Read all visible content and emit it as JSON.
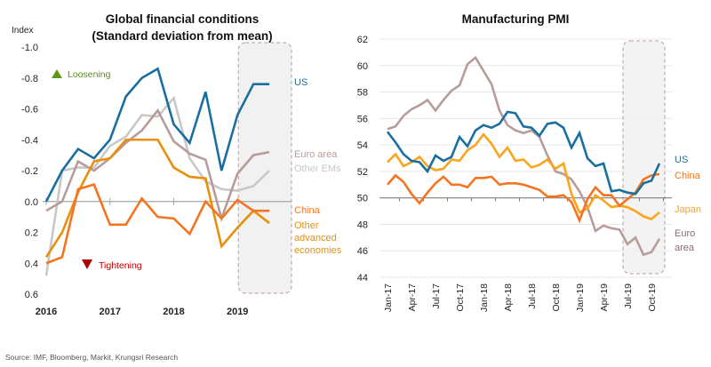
{
  "source": "Source: IMF, Bloomberg, Markit, Krungsri Research",
  "chart_data": [
    {
      "type": "line",
      "title": "Global financial conditions",
      "subtitle": "(Standard deviation from mean)",
      "ylabel": "Index",
      "y_inverted": true,
      "ylim": [
        -1.0,
        0.6
      ],
      "yticks": [
        "-1.0",
        "-0.8",
        "-0.6",
        "-0.4",
        "-0.2",
        "0.0",
        "0.2",
        "0.4",
        "0.6"
      ],
      "ytick_values": [
        -1.0,
        -0.8,
        -0.6,
        -0.4,
        -0.2,
        0.0,
        0.2,
        0.4,
        0.6
      ],
      "xticks": [
        "2016",
        "2017",
        "2018",
        "2019"
      ],
      "xtick_values": [
        2016.0,
        2017.0,
        2018.0,
        2019.0
      ],
      "xlim": [
        2016.0,
        2019.75
      ],
      "annotations": [
        {
          "text": "Loosening",
          "icon": "triangle-up",
          "color": "#5a8f1c"
        },
        {
          "text": "Tightening",
          "icon": "triangle-down",
          "color": "#c00000"
        }
      ],
      "highlight_region": {
        "from": 2019.0,
        "to": 2019.75
      },
      "x": [
        2016.0,
        2016.25,
        2016.5,
        2016.75,
        2017.0,
        2017.25,
        2017.5,
        2017.75,
        2018.0,
        2018.25,
        2018.5,
        2018.75,
        2019.0,
        2019.25,
        2019.5,
        2019.75
      ],
      "series": [
        {
          "name": "US",
          "color": "#1b6fa0",
          "values": [
            0.0,
            -0.2,
            -0.34,
            -0.28,
            -0.4,
            -0.68,
            -0.8,
            -0.86,
            -0.5,
            -0.38,
            -0.71,
            -0.2,
            -0.56,
            -0.76,
            -0.76,
            null
          ]
        },
        {
          "name": "Euro area",
          "color": "#b89c9c",
          "values": [
            0.06,
            0.0,
            -0.26,
            -0.2,
            -0.28,
            -0.38,
            -0.46,
            -0.59,
            -0.39,
            -0.31,
            -0.27,
            0.11,
            -0.18,
            -0.3,
            -0.32,
            null
          ]
        },
        {
          "name": "Other EMs",
          "color": "#c8c8c8",
          "values": [
            0.48,
            -0.2,
            -0.22,
            -0.22,
            -0.36,
            -0.42,
            -0.56,
            -0.55,
            -0.67,
            -0.28,
            -0.13,
            -0.08,
            -0.07,
            -0.1,
            -0.2,
            null
          ]
        },
        {
          "name": "China",
          "color": "#f47521",
          "values": [
            0.4,
            0.36,
            -0.08,
            -0.11,
            0.15,
            0.15,
            -0.02,
            0.1,
            0.11,
            0.21,
            0.0,
            0.11,
            -0.01,
            0.06,
            0.06,
            null
          ]
        },
        {
          "name": "Other advanced economies",
          "color": "#e8900c",
          "values": [
            0.36,
            0.2,
            -0.06,
            -0.26,
            -0.28,
            -0.4,
            -0.4,
            -0.4,
            -0.22,
            -0.16,
            -0.15,
            0.29,
            0.17,
            0.06,
            0.14,
            null
          ]
        }
      ]
    },
    {
      "type": "line",
      "title": "Manufacturing PMI",
      "ylim": [
        44,
        62
      ],
      "yticks": [
        "62",
        "60",
        "58",
        "56",
        "54",
        "52",
        "50",
        "48",
        "46",
        "44"
      ],
      "ytick_values": [
        62,
        60,
        58,
        56,
        54,
        52,
        50,
        48,
        46,
        44
      ],
      "xticks": [
        "Jan-17",
        "Apr-17",
        "Jul-17",
        "Oct-17",
        "Jan-18",
        "Apr-18",
        "Jul-18",
        "Oct-18",
        "Jan-19",
        "Apr-19",
        "Jul-19",
        "Oct-19"
      ],
      "xtick_index": [
        0,
        3,
        6,
        9,
        12,
        15,
        18,
        21,
        24,
        27,
        30,
        33
      ],
      "highlight_region": {
        "from_index": 30,
        "to_index": 34
      },
      "grid": true,
      "series": [
        {
          "name": "US",
          "color": "#1b6fa0",
          "values": [
            55.0,
            54.2,
            53.3,
            52.8,
            52.7,
            52.0,
            53.2,
            52.8,
            53.1,
            54.6,
            53.9,
            55.1,
            55.5,
            55.3,
            55.6,
            56.5,
            56.4,
            55.4,
            55.3,
            54.7,
            55.6,
            55.7,
            55.3,
            53.8,
            54.9,
            53.0,
            52.4,
            52.6,
            50.5,
            50.6,
            50.4,
            50.3,
            51.1,
            51.3,
            52.6
          ]
        },
        {
          "name": "China",
          "color": "#f47521",
          "values": [
            51.0,
            51.7,
            51.2,
            50.3,
            49.6,
            50.4,
            51.1,
            51.6,
            51.0,
            51.0,
            50.8,
            51.5,
            51.5,
            51.6,
            51.0,
            51.1,
            51.1,
            51.0,
            50.8,
            50.6,
            50.1,
            50.1,
            50.2,
            49.7,
            48.3,
            49.9,
            50.8,
            50.2,
            50.2,
            49.4,
            49.9,
            50.4,
            51.4,
            51.7,
            51.8
          ]
        },
        {
          "name": "Japan",
          "color": "#fca51a",
          "values": [
            52.7,
            53.3,
            52.4,
            52.7,
            53.1,
            52.4,
            52.1,
            52.2,
            52.9,
            52.8,
            53.6,
            54.0,
            54.8,
            54.1,
            53.1,
            53.8,
            52.8,
            52.9,
            52.3,
            52.5,
            52.9,
            52.2,
            52.6,
            50.3,
            48.9,
            49.2,
            50.2,
            49.8,
            49.3,
            49.4,
            49.3,
            49.0,
            48.6,
            48.4,
            48.9
          ]
        },
        {
          "name": "Euro area",
          "color": "#b89c9c",
          "values": [
            55.2,
            55.4,
            56.2,
            56.7,
            57.0,
            57.4,
            56.6,
            57.4,
            58.1,
            58.5,
            60.1,
            60.6,
            59.6,
            58.6,
            56.6,
            55.5,
            55.1,
            54.9,
            55.1,
            54.6,
            53.2,
            52.0,
            51.8,
            51.4,
            50.5,
            49.3,
            47.5,
            47.9,
            47.7,
            47.6,
            46.5,
            47.0,
            45.7,
            45.9,
            46.9
          ]
        }
      ]
    }
  ]
}
